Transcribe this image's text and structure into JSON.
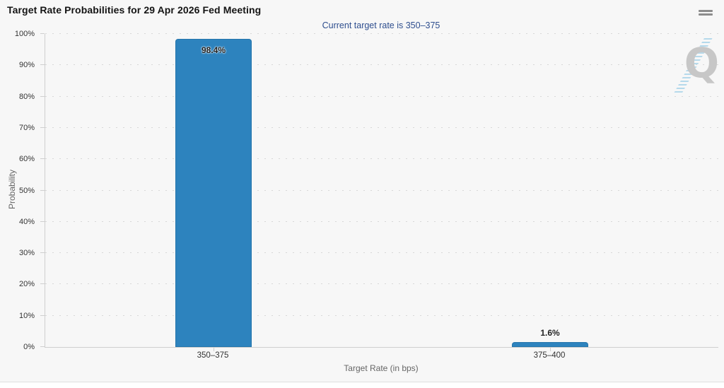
{
  "header": {
    "title": "Target Rate Probabilities for 29 Apr 2026 Fed Meeting",
    "menu_icon": "hamburger-icon"
  },
  "watermark": {
    "letter": "Q"
  },
  "chart_data": {
    "type": "bar",
    "title": "Target Rate Probabilities for 29 Apr 2026 Fed Meeting",
    "subtitle": "Current target rate is 350–375",
    "categories": [
      "350–375",
      "375–400"
    ],
    "values": [
      98.4,
      1.6
    ],
    "data_labels": [
      "98.4%",
      "1.6%"
    ],
    "xlabel": "Target Rate (in bps)",
    "ylabel": "Probability",
    "ylim": [
      0,
      100
    ],
    "yticks": [
      0,
      10,
      20,
      30,
      40,
      50,
      60,
      70,
      80,
      90,
      100
    ],
    "ytick_suffix": "%",
    "grid": "dotted-horizontal",
    "legend": false,
    "bar_color": "#2d83be",
    "background_color": "#f7f7f7",
    "subtitle_color": "#2e4e8e",
    "axis_color": "#cfcfcf"
  }
}
